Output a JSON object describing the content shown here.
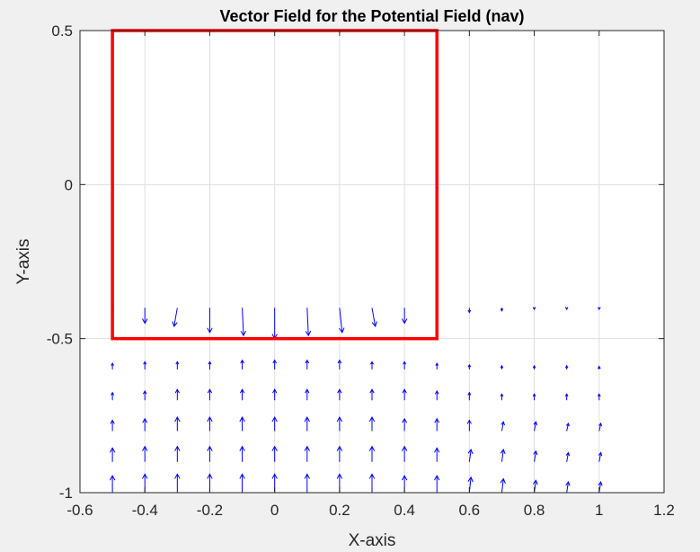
{
  "chart_data": {
    "type": "quiver",
    "title": "Vector Field for the Potential Field (nav)",
    "xlabel": "X-axis",
    "ylabel": "Y-axis",
    "xlim": [
      -0.6,
      1.2
    ],
    "ylim": [
      -1,
      0.5
    ],
    "xticks": [
      "-0.6",
      "-0.4",
      "-0.2",
      "0",
      "0.2",
      "0.4",
      "0.6",
      "0.8",
      "1",
      "1.2"
    ],
    "yticks": [
      "-1",
      "-0.5",
      "0",
      "0.5"
    ],
    "grid": true,
    "colors": {
      "arrows": "#0000ff",
      "boundary": "#ff0000",
      "axes_bg": "#ffffff",
      "figure_bg": "#f0f0f0",
      "grid": "#dfdfdf"
    },
    "boundary_rect": {
      "x": [
        -0.5,
        0.5
      ],
      "y": [
        -0.5,
        0.5
      ]
    },
    "arrows": {
      "grid_x": [
        -0.5,
        -0.4,
        -0.3,
        -0.2,
        -0.1,
        0,
        0.1,
        0.2,
        0.3,
        0.4,
        0.5,
        0.6,
        0.7,
        0.8,
        0.9,
        1.0
      ],
      "rows": [
        {
          "y": -0.4,
          "u": [
            0,
            0,
            -0.01,
            0,
            0.004,
            0,
            0.004,
            0.008,
            0.01,
            0,
            0,
            0,
            0,
            0,
            0,
            0
          ],
          "v": [
            -0.01,
            -0.05,
            -0.06,
            -0.08,
            -0.09,
            -0.1,
            -0.09,
            -0.08,
            -0.06,
            -0.05,
            0,
            -0.015,
            -0.01,
            -0.005,
            -0.005,
            -0.005
          ]
        },
        {
          "y": -0.6,
          "u": [
            0,
            0,
            0,
            0,
            0,
            0,
            0,
            0,
            0,
            0,
            0,
            0,
            0,
            0,
            0,
            0
          ],
          "v": [
            0.02,
            0.025,
            0.025,
            0.025,
            0.03,
            0.03,
            0.03,
            0.03,
            0.025,
            0.025,
            0.02,
            0.015,
            0.012,
            0.012,
            0.012,
            0.01
          ]
        },
        {
          "y": -0.7,
          "u": [
            0,
            0,
            0,
            0,
            0,
            0,
            0,
            0,
            0,
            0,
            0,
            0,
            0,
            0,
            0,
            0
          ],
          "v": [
            0.025,
            0.03,
            0.035,
            0.035,
            0.035,
            0.035,
            0.035,
            0.035,
            0.035,
            0.035,
            0.03,
            0.025,
            0.02,
            0.02,
            0.02,
            0.02
          ]
        },
        {
          "y": -0.8,
          "u": [
            0,
            0,
            0,
            0,
            0,
            0,
            0,
            0,
            0,
            0,
            0,
            0,
            0.005,
            0.005,
            0.005,
            0.005
          ],
          "v": [
            0.035,
            0.04,
            0.045,
            0.045,
            0.045,
            0.045,
            0.045,
            0.045,
            0.045,
            0.04,
            0.04,
            0.035,
            0.03,
            0.03,
            0.025,
            0.025
          ]
        },
        {
          "y": -0.9,
          "u": [
            0,
            0,
            0,
            0,
            0,
            0,
            0,
            0,
            0,
            0,
            0,
            0.005,
            0.005,
            0.005,
            0.005,
            0.005
          ],
          "v": [
            0.045,
            0.05,
            0.05,
            0.05,
            0.05,
            0.05,
            0.05,
            0.05,
            0.05,
            0.05,
            0.045,
            0.04,
            0.04,
            0.035,
            0.03,
            0.03
          ]
        },
        {
          "y": -1.0,
          "u": [
            0,
            0,
            0,
            0,
            0,
            0,
            0,
            0,
            0,
            0,
            0,
            0.005,
            0.005,
            0.005,
            0.005,
            0.005
          ],
          "v": [
            0.055,
            0.06,
            0.06,
            0.06,
            0.06,
            0.06,
            0.06,
            0.06,
            0.06,
            0.055,
            0.055,
            0.05,
            0.045,
            0.04,
            0.035,
            0.035
          ]
        }
      ]
    }
  }
}
